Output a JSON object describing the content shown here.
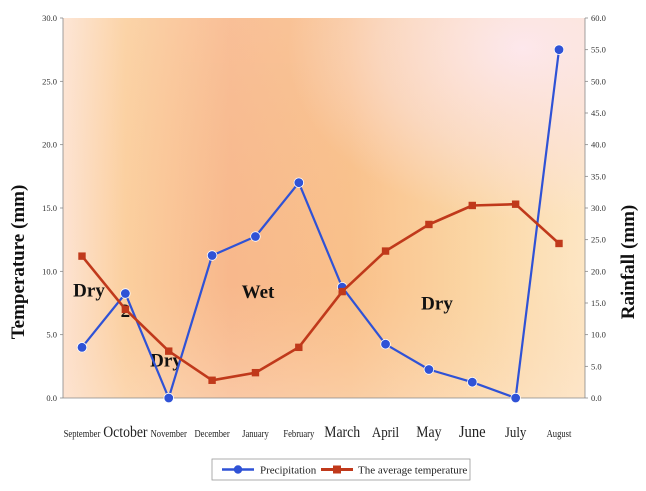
{
  "chart_data": {
    "type": "line",
    "categories": [
      "September",
      "October",
      "November",
      "December",
      "January",
      "February",
      "March",
      "April",
      "May",
      "June",
      "July",
      "August"
    ],
    "series": [
      {
        "name": "Precipitation",
        "axis": "right",
        "color": "#2f52d6",
        "marker": "circle",
        "values": [
          8.0,
          16.5,
          0.0,
          22.5,
          25.5,
          34.0,
          17.5,
          8.5,
          4.5,
          2.5,
          0.0,
          55.0
        ]
      },
      {
        "name": "The average temperature",
        "axis": "left",
        "color": "#c0391b",
        "marker": "square",
        "values": [
          11.2,
          7.0,
          3.7,
          1.4,
          2.0,
          4.0,
          8.4,
          11.6,
          13.7,
          15.2,
          15.3,
          12.2
        ]
      }
    ],
    "ylabel_left": "Temperature (mm)",
    "ylabel_right": "Rainfall  (mm)",
    "ylim_left": [
      0,
      30
    ],
    "ylim_right": [
      0,
      60
    ],
    "left_ticks": [
      "0.0",
      "5.0",
      "10.0",
      "15.0",
      "20.0",
      "25.0",
      "30.0"
    ],
    "right_ticks": [
      "0.0",
      "5.0",
      "10.0",
      "15.0",
      "20.0",
      "25.0",
      "30.0",
      "35.0",
      "40.0",
      "45.0",
      "50.0",
      "55.0",
      "60.0"
    ],
    "annotations": [
      {
        "text": "Dry",
        "x": "September",
        "y_left": 8.0
      },
      {
        "text": "2",
        "x": "October",
        "y_left": 6.4
      },
      {
        "text": "Dry",
        "x": "November",
        "y_left": 2.5
      },
      {
        "text": "Wet",
        "x": "January",
        "y_left": 7.9
      },
      {
        "text": "Dry",
        "x": "May",
        "y_left": 7.0
      }
    ],
    "legend_position": "bottom",
    "grid": false
  }
}
